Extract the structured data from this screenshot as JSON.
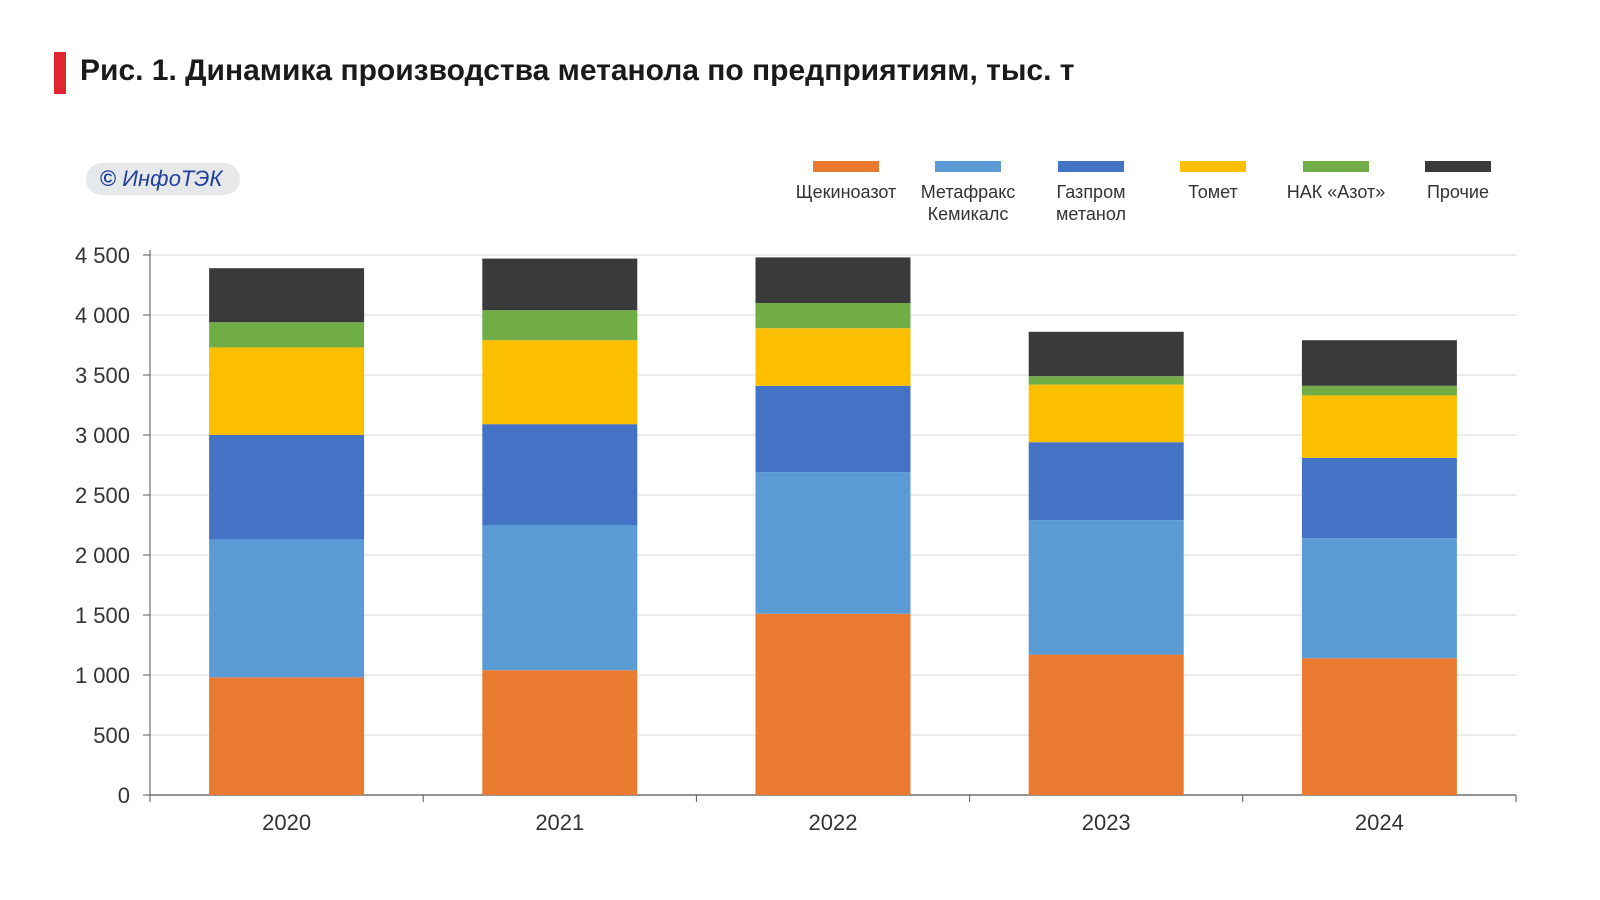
{
  "header": {
    "title": "Рис. 1. Динамика производства метанола по предприятиям, тыс. т",
    "accent_color": "#e0262f"
  },
  "badge": {
    "icon": "©",
    "text": "ИнфоТЭК",
    "color": "#1f3f99"
  },
  "chart_data": {
    "type": "bar",
    "stacked": true,
    "title": "Рис. 1. Динамика производства метанола по предприятиям, тыс. т",
    "xlabel": "",
    "ylabel": "",
    "ylim": [
      0,
      4500
    ],
    "yticks": [
      0,
      500,
      1000,
      1500,
      2000,
      2500,
      3000,
      3500,
      4000,
      4500
    ],
    "ytick_labels": [
      "0",
      "500",
      "1 000",
      "1 500",
      "2 000",
      "2 500",
      "3 000",
      "3 500",
      "4 000",
      "4 500"
    ],
    "grid": true,
    "legend_position": "top-right",
    "categories": [
      "2020",
      "2021",
      "2022",
      "2023",
      "2024"
    ],
    "series": [
      {
        "name": "Щекиноазот",
        "label_lines": [
          "Щекиноазот"
        ],
        "color": "#e97a30",
        "values": [
          980,
          1040,
          1510,
          1170,
          1140
        ]
      },
      {
        "name": "Метафракс Кемикалс",
        "label_lines": [
          "Метафракс",
          "Кемикалс"
        ],
        "color": "#5b9bd5",
        "values": [
          1150,
          1210,
          1180,
          1120,
          1000
        ]
      },
      {
        "name": "Газпром метанол",
        "label_lines": [
          "Газпром",
          "метанол"
        ],
        "color": "#4472c4",
        "values": [
          870,
          840,
          720,
          650,
          670
        ]
      },
      {
        "name": "Томет",
        "label_lines": [
          "Томет"
        ],
        "color": "#fbbf00",
        "values": [
          730,
          700,
          480,
          480,
          520
        ]
      },
      {
        "name": "НАК «Азот»",
        "label_lines": [
          "НАК «Азот»"
        ],
        "color": "#70ad47",
        "values": [
          210,
          250,
          210,
          70,
          80
        ]
      },
      {
        "name": "Прочие",
        "label_lines": [
          "Прочие"
        ],
        "color": "#3a3a3a",
        "values": [
          450,
          430,
          380,
          370,
          380
        ]
      }
    ]
  }
}
